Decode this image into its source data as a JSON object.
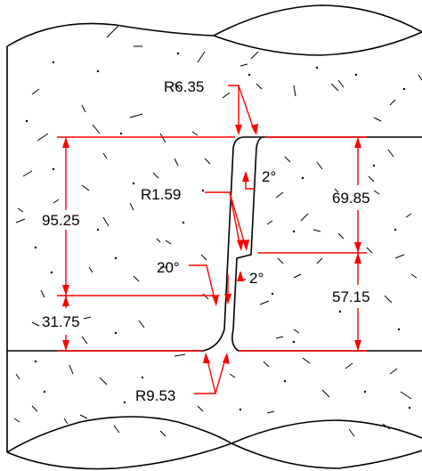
{
  "dimensions": {
    "d_95_25": "95.25",
    "d_31_75": "31.75",
    "d_69_85": "69.85",
    "d_57_15": "57.15",
    "r_6_35": "R6.35",
    "r_1_59": "R1.59",
    "r_9_53": "R9.53",
    "angle_20": "20°",
    "angle_2_upper": "2°",
    "angle_2_lower": "2°"
  },
  "colors": {
    "outline": "#000000",
    "dimension": "#ff0000"
  }
}
